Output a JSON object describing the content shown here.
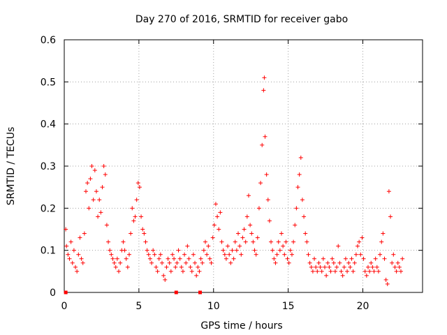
{
  "chart_data": {
    "type": "scatter",
    "title": "Day 270 of 2016, SRMTID for receiver gabo",
    "xlabel": "GPS time / hours",
    "ylabel": "SRMTID / TECUs",
    "xlim": [
      0,
      24
    ],
    "ylim": [
      0,
      0.6
    ],
    "xticks": [
      0,
      5,
      10,
      15,
      20
    ],
    "xtick_labels": [
      "0",
      "5",
      "10",
      "15",
      "20"
    ],
    "yticks": [
      0,
      0.1,
      0.2,
      0.3,
      0.4,
      0.5,
      0.6
    ],
    "ytick_labels": [
      "0",
      "0.1",
      "0.2",
      "0.3",
      "0.4",
      "0.5",
      "0.6"
    ],
    "grid": true,
    "marker": "plus",
    "series": [
      {
        "name": "SRMTID",
        "color": "#ff0000",
        "points": [
          [
            0.1,
            0.15
          ],
          [
            0.15,
            0.11
          ],
          [
            0.25,
            0.09
          ],
          [
            0.35,
            0.08
          ],
          [
            0.45,
            0.12
          ],
          [
            0.55,
            0.07
          ],
          [
            0.65,
            0.1
          ],
          [
            0.75,
            0.06
          ],
          [
            0.85,
            0.05
          ],
          [
            0.95,
            0.09
          ],
          [
            1.05,
            0.13
          ],
          [
            1.15,
            0.08
          ],
          [
            1.25,
            0.07
          ],
          [
            1.35,
            0.14
          ],
          [
            1.45,
            0.24
          ],
          [
            1.55,
            0.26
          ],
          [
            1.65,
            0.2
          ],
          [
            1.75,
            0.27
          ],
          [
            1.85,
            0.3
          ],
          [
            1.95,
            0.22
          ],
          [
            2.05,
            0.29
          ],
          [
            2.15,
            0.24
          ],
          [
            2.25,
            0.18
          ],
          [
            2.35,
            0.22
          ],
          [
            2.45,
            0.19
          ],
          [
            2.55,
            0.25
          ],
          [
            2.65,
            0.3
          ],
          [
            2.75,
            0.28
          ],
          [
            2.85,
            0.16
          ],
          [
            2.95,
            0.12
          ],
          [
            3.05,
            0.1
          ],
          [
            3.15,
            0.09
          ],
          [
            3.25,
            0.08
          ],
          [
            3.35,
            0.07
          ],
          [
            3.45,
            0.06
          ],
          [
            3.55,
            0.08
          ],
          [
            3.65,
            0.05
          ],
          [
            3.75,
            0.07
          ],
          [
            3.85,
            0.1
          ],
          [
            3.95,
            0.12
          ],
          [
            4.05,
            0.1
          ],
          [
            4.15,
            0.08
          ],
          [
            4.25,
            0.06
          ],
          [
            4.35,
            0.09
          ],
          [
            4.45,
            0.14
          ],
          [
            4.55,
            0.2
          ],
          [
            4.65,
            0.17
          ],
          [
            4.75,
            0.18
          ],
          [
            4.85,
            0.22
          ],
          [
            4.95,
            0.26
          ],
          [
            5.05,
            0.25
          ],
          [
            5.15,
            0.18
          ],
          [
            5.25,
            0.15
          ],
          [
            5.35,
            0.14
          ],
          [
            5.45,
            0.12
          ],
          [
            5.55,
            0.1
          ],
          [
            5.65,
            0.09
          ],
          [
            5.75,
            0.08
          ],
          [
            5.85,
            0.07
          ],
          [
            5.95,
            0.1
          ],
          [
            6.05,
            0.09
          ],
          [
            6.15,
            0.06
          ],
          [
            6.25,
            0.05
          ],
          [
            6.35,
            0.08
          ],
          [
            6.45,
            0.09
          ],
          [
            6.55,
            0.07
          ],
          [
            6.65,
            0.04
          ],
          [
            6.75,
            0.03
          ],
          [
            6.85,
            0.06
          ],
          [
            6.95,
            0.08
          ],
          [
            7.05,
            0.07
          ],
          [
            7.15,
            0.05
          ],
          [
            7.25,
            0.09
          ],
          [
            7.35,
            0.08
          ],
          [
            7.45,
            0.06
          ],
          [
            7.55,
            0.07
          ],
          [
            7.65,
            0.1
          ],
          [
            7.75,
            0.08
          ],
          [
            7.85,
            0.06
          ],
          [
            7.95,
            0.05
          ],
          [
            8.05,
            0.09
          ],
          [
            8.15,
            0.07
          ],
          [
            8.25,
            0.11
          ],
          [
            8.35,
            0.08
          ],
          [
            8.45,
            0.06
          ],
          [
            8.55,
            0.05
          ],
          [
            8.65,
            0.09
          ],
          [
            8.75,
            0.07
          ],
          [
            8.85,
            0.04
          ],
          [
            8.95,
            0.06
          ],
          [
            9.05,
            0.05
          ],
          [
            9.15,
            0.08
          ],
          [
            9.25,
            0.07
          ],
          [
            9.35,
            0.1
          ],
          [
            9.45,
            0.12
          ],
          [
            9.55,
            0.09
          ],
          [
            9.65,
            0.11
          ],
          [
            9.75,
            0.08
          ],
          [
            9.85,
            0.07
          ],
          [
            9.95,
            0.13
          ],
          [
            10.05,
            0.16
          ],
          [
            10.15,
            0.21
          ],
          [
            10.25,
            0.18
          ],
          [
            10.35,
            0.15
          ],
          [
            10.45,
            0.19
          ],
          [
            10.55,
            0.12
          ],
          [
            10.65,
            0.1
          ],
          [
            10.75,
            0.09
          ],
          [
            10.85,
            0.08
          ],
          [
            10.95,
            0.11
          ],
          [
            11.05,
            0.09
          ],
          [
            11.15,
            0.07
          ],
          [
            11.25,
            0.1
          ],
          [
            11.35,
            0.08
          ],
          [
            11.45,
            0.12
          ],
          [
            11.55,
            0.1
          ],
          [
            11.65,
            0.14
          ],
          [
            11.75,
            0.11
          ],
          [
            11.85,
            0.09
          ],
          [
            11.95,
            0.13
          ],
          [
            12.05,
            0.15
          ],
          [
            12.15,
            0.12
          ],
          [
            12.25,
            0.18
          ],
          [
            12.35,
            0.23
          ],
          [
            12.45,
            0.16
          ],
          [
            12.55,
            0.14
          ],
          [
            12.65,
            0.12
          ],
          [
            12.75,
            0.1
          ],
          [
            12.85,
            0.09
          ],
          [
            12.95,
            0.13
          ],
          [
            13.05,
            0.2
          ],
          [
            13.15,
            0.26
          ],
          [
            13.25,
            0.35
          ],
          [
            13.35,
            0.48
          ],
          [
            13.4,
            0.51
          ],
          [
            13.45,
            0.37
          ],
          [
            13.55,
            0.28
          ],
          [
            13.65,
            0.22
          ],
          [
            13.75,
            0.17
          ],
          [
            13.85,
            0.12
          ],
          [
            13.95,
            0.1
          ],
          [
            14.05,
            0.08
          ],
          [
            14.15,
            0.07
          ],
          [
            14.25,
            0.09
          ],
          [
            14.35,
            0.12
          ],
          [
            14.45,
            0.1
          ],
          [
            14.55,
            0.14
          ],
          [
            14.65,
            0.11
          ],
          [
            14.75,
            0.09
          ],
          [
            14.85,
            0.12
          ],
          [
            14.95,
            0.08
          ],
          [
            15.05,
            0.07
          ],
          [
            15.15,
            0.1
          ],
          [
            15.25,
            0.09
          ],
          [
            15.35,
            0.12
          ],
          [
            15.45,
            0.16
          ],
          [
            15.55,
            0.2
          ],
          [
            15.65,
            0.25
          ],
          [
            15.75,
            0.28
          ],
          [
            15.85,
            0.32
          ],
          [
            15.95,
            0.22
          ],
          [
            16.05,
            0.18
          ],
          [
            16.15,
            0.14
          ],
          [
            16.25,
            0.12
          ],
          [
            16.35,
            0.09
          ],
          [
            16.45,
            0.07
          ],
          [
            16.55,
            0.06
          ],
          [
            16.65,
            0.05
          ],
          [
            16.75,
            0.08
          ],
          [
            16.85,
            0.06
          ],
          [
            16.95,
            0.05
          ],
          [
            17.05,
            0.07
          ],
          [
            17.15,
            0.06
          ],
          [
            17.25,
            0.05
          ],
          [
            17.35,
            0.08
          ],
          [
            17.45,
            0.06
          ],
          [
            17.55,
            0.04
          ],
          [
            17.65,
            0.07
          ],
          [
            17.75,
            0.06
          ],
          [
            17.85,
            0.05
          ],
          [
            17.95,
            0.08
          ],
          [
            18.05,
            0.07
          ],
          [
            18.15,
            0.05
          ],
          [
            18.25,
            0.06
          ],
          [
            18.35,
            0.11
          ],
          [
            18.45,
            0.07
          ],
          [
            18.55,
            0.05
          ],
          [
            18.65,
            0.04
          ],
          [
            18.75,
            0.06
          ],
          [
            18.85,
            0.08
          ],
          [
            18.95,
            0.05
          ],
          [
            19.05,
            0.07
          ],
          [
            19.15,
            0.06
          ],
          [
            19.25,
            0.08
          ],
          [
            19.35,
            0.05
          ],
          [
            19.45,
            0.07
          ],
          [
            19.55,
            0.09
          ],
          [
            19.65,
            0.11
          ],
          [
            19.75,
            0.12
          ],
          [
            19.85,
            0.09
          ],
          [
            19.95,
            0.13
          ],
          [
            20.05,
            0.08
          ],
          [
            20.15,
            0.05
          ],
          [
            20.25,
            0.04
          ],
          [
            20.35,
            0.06
          ],
          [
            20.45,
            0.05
          ],
          [
            20.55,
            0.07
          ],
          [
            20.65,
            0.06
          ],
          [
            20.75,
            0.05
          ],
          [
            20.85,
            0.08
          ],
          [
            20.95,
            0.06
          ],
          [
            21.05,
            0.05
          ],
          [
            21.15,
            0.09
          ],
          [
            21.25,
            0.12
          ],
          [
            21.35,
            0.14
          ],
          [
            21.45,
            0.08
          ],
          [
            21.55,
            0.03
          ],
          [
            21.65,
            0.02
          ],
          [
            21.75,
            0.24
          ],
          [
            21.85,
            0.18
          ],
          [
            21.95,
            0.07
          ],
          [
            22.05,
            0.09
          ],
          [
            22.15,
            0.06
          ],
          [
            22.25,
            0.05
          ],
          [
            22.35,
            0.07
          ],
          [
            22.45,
            0.06
          ],
          [
            22.55,
            0.05
          ],
          [
            22.65,
            0.08
          ]
        ]
      }
    ],
    "gap_markers": [
      0.1,
      7.5,
      9.1
    ]
  }
}
